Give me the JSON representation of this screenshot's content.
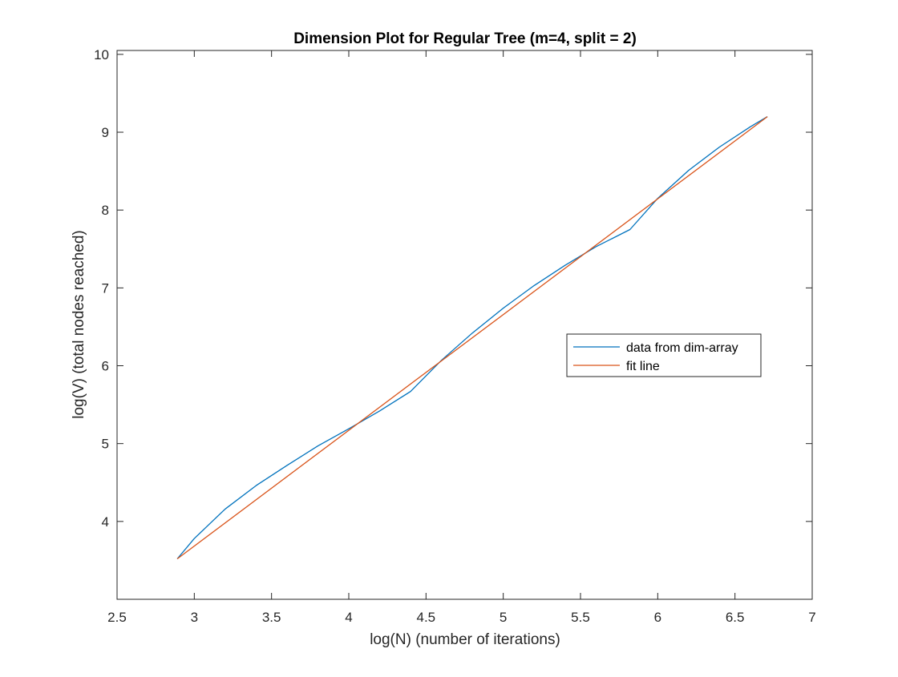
{
  "chart_data": {
    "type": "line",
    "title": "Dimension Plot for Regular Tree (m=4, split = 2)",
    "xlabel": "log(N) (number of iterations)",
    "ylabel": "log(V) (total nodes reached)",
    "xlim": [
      2.5,
      7
    ],
    "ylim": [
      3.0,
      10.05
    ],
    "xticks": [
      2.5,
      3,
      3.5,
      4,
      4.5,
      5,
      5.5,
      6,
      6.5,
      7
    ],
    "xtick_labels": [
      "2.5",
      "3",
      "3.5",
      "4",
      "4.5",
      "5",
      "5.5",
      "6",
      "6.5",
      "7"
    ],
    "yticks": [
      4,
      5,
      6,
      7,
      8,
      9,
      10
    ],
    "ytick_labels": [
      "4",
      "5",
      "6",
      "7",
      "8",
      "9",
      "10"
    ],
    "grid": false,
    "legend": {
      "placement": "right-center",
      "entries": [
        "data from dim-array",
        "fit line"
      ]
    },
    "series": [
      {
        "name": "data from dim-array",
        "color": "#0072BD",
        "x": [
          2.89,
          3.0,
          3.2,
          3.4,
          3.6,
          3.8,
          4.0,
          4.2,
          4.4,
          4.6,
          4.8,
          5.0,
          5.2,
          5.4,
          5.6,
          5.82,
          6.0,
          6.2,
          6.4,
          6.6,
          6.71
        ],
        "y": [
          3.52,
          3.78,
          4.16,
          4.46,
          4.72,
          4.97,
          5.19,
          5.42,
          5.67,
          6.07,
          6.42,
          6.74,
          7.03,
          7.29,
          7.53,
          7.75,
          8.15,
          8.51,
          8.81,
          9.07,
          9.2
        ]
      },
      {
        "name": "fit line",
        "color": "#D95319",
        "x": [
          2.89,
          6.71
        ],
        "y": [
          3.52,
          9.2
        ]
      }
    ]
  }
}
